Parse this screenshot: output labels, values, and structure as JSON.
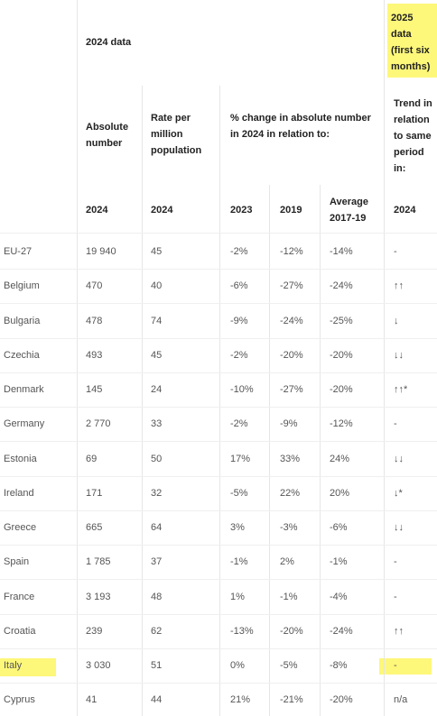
{
  "header": {
    "group_2024": "2024 data",
    "group_2025": "2025 data (first six months)",
    "columns": [
      "Absolute number",
      "Rate per million population",
      "% change in absolute number in 2024 in relation to:",
      "Trend in relation to same period in:"
    ],
    "years": [
      "2024",
      "2024",
      "2023",
      "2019",
      "Average 2017-19",
      "2024"
    ]
  },
  "rows": [
    [
      "EU-27",
      "19 940",
      "45",
      "-2%",
      "-12%",
      "-14%",
      "-"
    ],
    [
      "Belgium",
      "470",
      "40",
      "-6%",
      "-27%",
      "-24%",
      "↑↑"
    ],
    [
      "Bulgaria",
      "478",
      "74",
      "-9%",
      "-24%",
      "-25%",
      "↓"
    ],
    [
      "Czechia",
      "493",
      "45",
      "-2%",
      "-20%",
      "-20%",
      "↓↓"
    ],
    [
      "Denmark",
      "145",
      "24",
      "-10%",
      "-27%",
      "-20%",
      "↑↑*"
    ],
    [
      "Germany",
      "2 770",
      "33",
      "-2%",
      "-9%",
      "-12%",
      "-"
    ],
    [
      "Estonia",
      "69",
      "50",
      "17%",
      "33%",
      "24%",
      "↓↓"
    ],
    [
      "Ireland",
      "171",
      "32",
      "-5%",
      "22%",
      "20%",
      "↓*"
    ],
    [
      "Greece",
      "665",
      "64",
      "3%",
      "-3%",
      "-6%",
      "↓↓"
    ],
    [
      "Spain",
      "1 785",
      "37",
      "-1%",
      "2%",
      "-1%",
      "-"
    ],
    [
      "France",
      "3 193",
      "48",
      "1%",
      "-1%",
      "-4%",
      "-"
    ],
    [
      "Croatia",
      "239",
      "62",
      "-13%",
      "-20%",
      "-24%",
      "↑↑"
    ],
    [
      "Italy",
      "3 030",
      "51",
      "0%",
      "-5%",
      "-8%",
      "-"
    ],
    [
      "Cyprus",
      "41",
      "44",
      "21%",
      "-21%",
      "-20%",
      "n/a"
    ]
  ]
}
